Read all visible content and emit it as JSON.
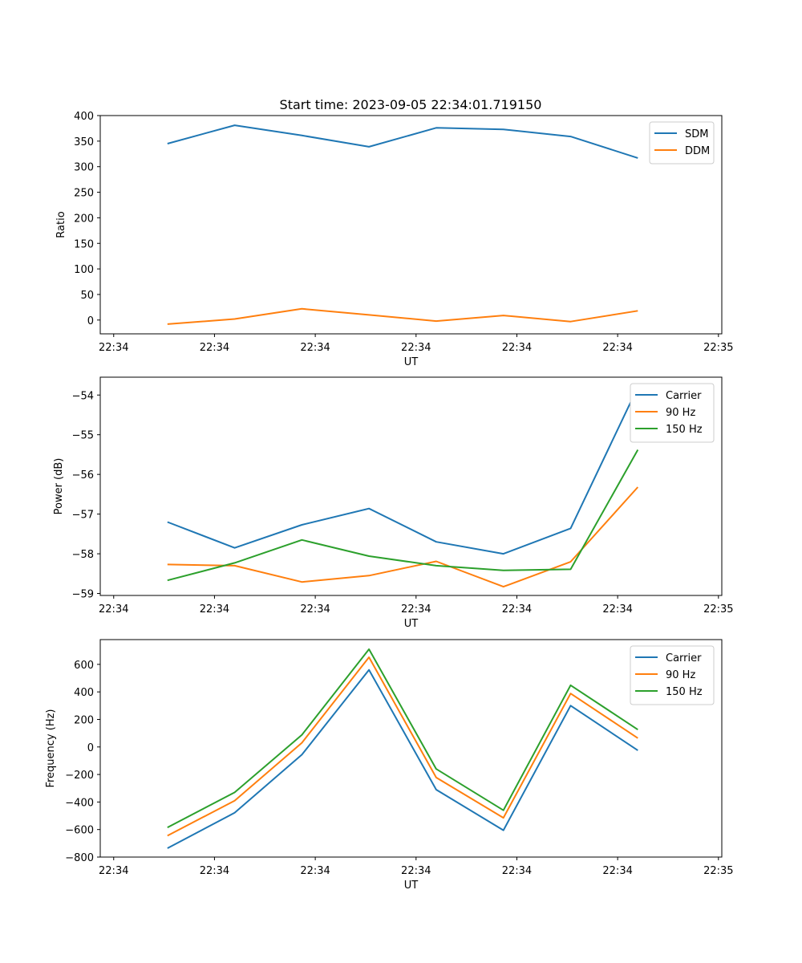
{
  "figure_title": "Start time: 2023-09-05 22:34:01.719150",
  "chart_data": [
    {
      "type": "line",
      "title": "Start time: 2023-09-05 22:34:01.719150",
      "xlabel": "UT",
      "ylabel": "Ratio",
      "xlim": [
        0,
        9.25
      ],
      "ylim": [
        -27,
        400
      ],
      "yticks": [
        0,
        50,
        100,
        150,
        200,
        250,
        300,
        350,
        400
      ],
      "yticklabels": [
        "0",
        "50",
        "100",
        "150",
        "200",
        "250",
        "300",
        "350",
        "400"
      ],
      "xticks": [
        0.2,
        1.7,
        3.2,
        4.7,
        6.2,
        7.7,
        9.2
      ],
      "xticklabels": [
        "22:34",
        "22:34",
        "22:34",
        "22:34",
        "22:34",
        "22:34",
        "22:35"
      ],
      "x": [
        1,
        2,
        3,
        4,
        5,
        6,
        7,
        8
      ],
      "legend_position": "upper-right",
      "series": [
        {
          "name": "SDM",
          "color": "#1f77b4",
          "values": [
            345,
            381,
            361,
            339,
            376,
            373,
            359,
            317
          ]
        },
        {
          "name": "DDM",
          "color": "#ff7f0e",
          "values": [
            -8,
            2,
            22,
            10,
            -2,
            9,
            -3,
            18
          ]
        }
      ]
    },
    {
      "type": "line",
      "title": "",
      "xlabel": "UT",
      "ylabel": "Power (dB)",
      "xlim": [
        0,
        9.25
      ],
      "ylim": [
        -59.05,
        -53.55
      ],
      "yticks": [
        -59,
        -58,
        -57,
        -56,
        -55,
        -54
      ],
      "yticklabels": [
        "−59",
        "−58",
        "−57",
        "−56",
        "−55",
        "−54"
      ],
      "xticks": [
        0.2,
        1.7,
        3.2,
        4.7,
        6.2,
        7.7,
        9.2
      ],
      "xticklabels": [
        "22:34",
        "22:34",
        "22:34",
        "22:34",
        "22:34",
        "22:34",
        "22:35"
      ],
      "x": [
        1,
        2,
        3,
        4,
        5,
        6,
        7,
        8
      ],
      "legend_position": "upper-right",
      "series": [
        {
          "name": "Carrier",
          "color": "#1f77b4",
          "values": [
            -57.2,
            -57.85,
            -57.27,
            -56.86,
            -57.7,
            -58.0,
            -57.36,
            -53.8
          ]
        },
        {
          "name": "90 Hz",
          "color": "#ff7f0e",
          "values": [
            -58.27,
            -58.3,
            -58.71,
            -58.55,
            -58.19,
            -58.83,
            -58.2,
            -56.32
          ]
        },
        {
          "name": "150 Hz",
          "color": "#2ca02c",
          "values": [
            -58.67,
            -58.23,
            -57.65,
            -58.06,
            -58.3,
            -58.42,
            -58.39,
            -55.38
          ]
        }
      ]
    },
    {
      "type": "line",
      "title": "",
      "xlabel": "UT",
      "ylabel": "Frequency (Hz)",
      "xlim": [
        0,
        9.25
      ],
      "ylim": [
        -800,
        780
      ],
      "yticks": [
        -800,
        -600,
        -400,
        -200,
        0,
        200,
        400,
        600
      ],
      "yticklabels": [
        "−800",
        "−600",
        "−400",
        "−200",
        "0",
        "200",
        "400",
        "600"
      ],
      "xticks": [
        0.2,
        1.7,
        3.2,
        4.7,
        6.2,
        7.7,
        9.2
      ],
      "xticklabels": [
        "22:34",
        "22:34",
        "22:34",
        "22:34",
        "22:34",
        "22:34",
        "22:35"
      ],
      "x": [
        1,
        2,
        3,
        4,
        5,
        6,
        7,
        8
      ],
      "legend_position": "upper-right",
      "series": [
        {
          "name": "Carrier",
          "color": "#1f77b4",
          "values": [
            -736,
            -478,
            -56,
            560,
            -310,
            -605,
            300,
            -25
          ]
        },
        {
          "name": "90 Hz",
          "color": "#ff7f0e",
          "values": [
            -645,
            -390,
            30,
            652,
            -222,
            -515,
            388,
            64
          ]
        },
        {
          "name": "150 Hz",
          "color": "#2ca02c",
          "values": [
            -585,
            -330,
            88,
            710,
            -160,
            -460,
            448,
            126
          ]
        }
      ]
    }
  ]
}
